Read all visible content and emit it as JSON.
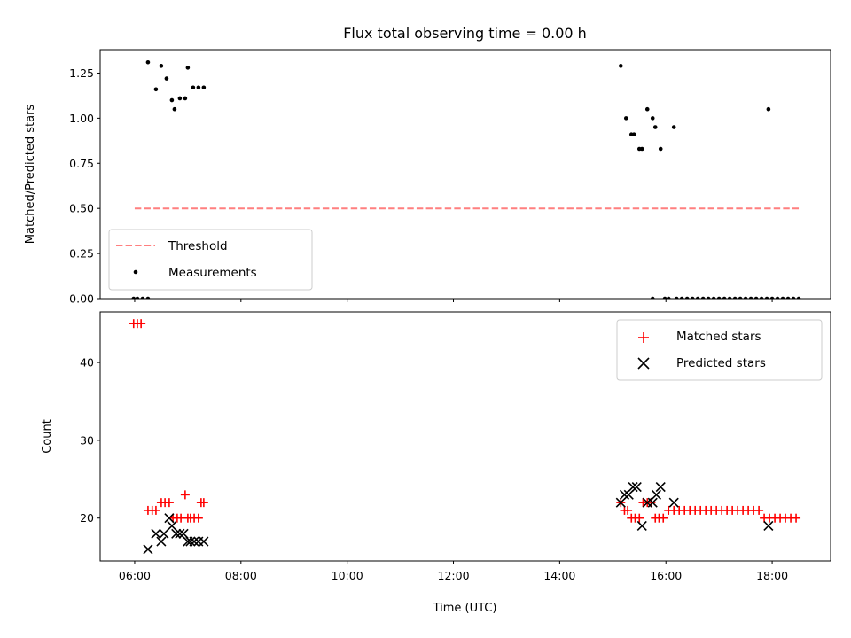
{
  "chart_data": [
    {
      "type": "scatter",
      "title": "Flux total observing time = 0.00 h",
      "xlabel": "",
      "ylabel": "Matched/Predicted stars",
      "xlim": [
        5.35,
        19.1
      ],
      "ylim": [
        0.0,
        1.38
      ],
      "yticks": [
        0.0,
        0.25,
        0.5,
        0.75,
        1.0,
        1.25
      ],
      "ytick_labels": [
        "0.00",
        "0.25",
        "0.50",
        "0.75",
        "1.00",
        "1.25"
      ],
      "x_tick_values": [
        6,
        8,
        10,
        12,
        14,
        16,
        18
      ],
      "x_tick_labels_shown": false,
      "legend_position": "lower-left",
      "legend": [
        "Threshold",
        "Measurements"
      ],
      "threshold": {
        "name": "Threshold",
        "y": 0.5,
        "x": [
          6.0,
          18.5
        ],
        "color": "#ff7f7f",
        "style": "dashed"
      },
      "measurements": {
        "name": "Measurements",
        "color": "#000000",
        "x": [
          5.98,
          6.05,
          6.15,
          6.25,
          6.25,
          6.4,
          6.5,
          6.6,
          6.7,
          6.75,
          6.85,
          6.95,
          7.0,
          7.1,
          7.2,
          7.3,
          15.15,
          15.25,
          15.35,
          15.4,
          15.5,
          15.55,
          15.65,
          15.75,
          15.8,
          15.9,
          16.15,
          15.75,
          15.98,
          16.05,
          16.2,
          16.3,
          16.4,
          16.5,
          16.6,
          16.7,
          16.8,
          16.9,
          17.0,
          17.1,
          17.2,
          17.3,
          17.4,
          17.5,
          17.6,
          17.7,
          17.8,
          17.9,
          18.0,
          18.1,
          18.2,
          18.3,
          18.4,
          18.5,
          17.93
        ],
        "y": [
          0.0,
          0.0,
          0.0,
          0.0,
          1.31,
          1.16,
          1.29,
          1.22,
          1.1,
          1.05,
          1.11,
          1.11,
          1.28,
          1.17,
          1.17,
          1.17,
          1.29,
          1.0,
          0.91,
          0.91,
          0.83,
          0.83,
          1.05,
          1.0,
          0.95,
          0.83,
          0.95,
          0.0,
          0.0,
          0.0,
          0.0,
          0.0,
          0.0,
          0.0,
          0.0,
          0.0,
          0.0,
          0.0,
          0.0,
          0.0,
          0.0,
          0.0,
          0.0,
          0.0,
          0.0,
          0.0,
          0.0,
          0.0,
          0.0,
          0.0,
          0.0,
          0.0,
          0.0,
          0.0,
          1.05
        ]
      }
    },
    {
      "type": "scatter",
      "title": "",
      "xlabel": "Time (UTC)",
      "ylabel": "Count",
      "xlim": [
        5.35,
        19.1
      ],
      "ylim": [
        14.5,
        46.5
      ],
      "yticks": [
        20,
        30,
        40
      ],
      "xticks": [
        6,
        8,
        10,
        12,
        14,
        16,
        18
      ],
      "xtick_labels": [
        "06:00",
        "08:00",
        "10:00",
        "12:00",
        "14:00",
        "16:00",
        "18:00"
      ],
      "legend_position": "upper-right",
      "legend": [
        "Matched stars",
        "Predicted stars"
      ],
      "series": [
        {
          "name": "Matched stars",
          "marker": "+",
          "color": "#ff0000",
          "x": [
            5.98,
            6.05,
            6.12,
            6.25,
            6.33,
            6.4,
            6.5,
            6.57,
            6.65,
            6.72,
            6.8,
            6.87,
            6.95,
            7.0,
            7.05,
            7.12,
            7.2,
            7.25,
            7.3,
            15.15,
            15.22,
            15.28,
            15.35,
            15.42,
            15.5,
            15.57,
            15.65,
            15.72,
            15.8,
            15.87,
            15.95,
            16.05,
            16.15,
            16.25,
            16.35,
            16.45,
            16.55,
            16.65,
            16.75,
            16.85,
            16.95,
            17.05,
            17.15,
            17.25,
            17.35,
            17.45,
            17.55,
            17.65,
            17.75,
            17.85,
            17.95,
            18.05,
            18.15,
            18.25,
            18.35,
            18.45
          ],
          "y": [
            45,
            45,
            45,
            21,
            21,
            21,
            22,
            22,
            22,
            20,
            20,
            20,
            23,
            20,
            20,
            20,
            20,
            22,
            22,
            22,
            21,
            21,
            20,
            20,
            20,
            22,
            22,
            22,
            20,
            20,
            20,
            21,
            21,
            21,
            21,
            21,
            21,
            21,
            21,
            21,
            21,
            21,
            21,
            21,
            21,
            21,
            21,
            21,
            21,
            20,
            20,
            20,
            20,
            20,
            20,
            20
          ]
        },
        {
          "name": "Predicted stars",
          "marker": "x",
          "color": "#000000",
          "x": [
            6.25,
            6.4,
            6.5,
            6.55,
            6.65,
            6.7,
            6.78,
            6.85,
            6.92,
            7.0,
            7.05,
            7.12,
            7.2,
            7.3,
            15.15,
            15.22,
            15.3,
            15.38,
            15.45,
            15.55,
            15.65,
            15.75,
            15.82,
            15.9,
            16.15,
            17.93
          ],
          "y": [
            16,
            18,
            17,
            18,
            20,
            19,
            18,
            18,
            18,
            17,
            17,
            17,
            17,
            17,
            22,
            23,
            23,
            24,
            24,
            19,
            22,
            22,
            23,
            24,
            22,
            19
          ]
        }
      ]
    }
  ]
}
